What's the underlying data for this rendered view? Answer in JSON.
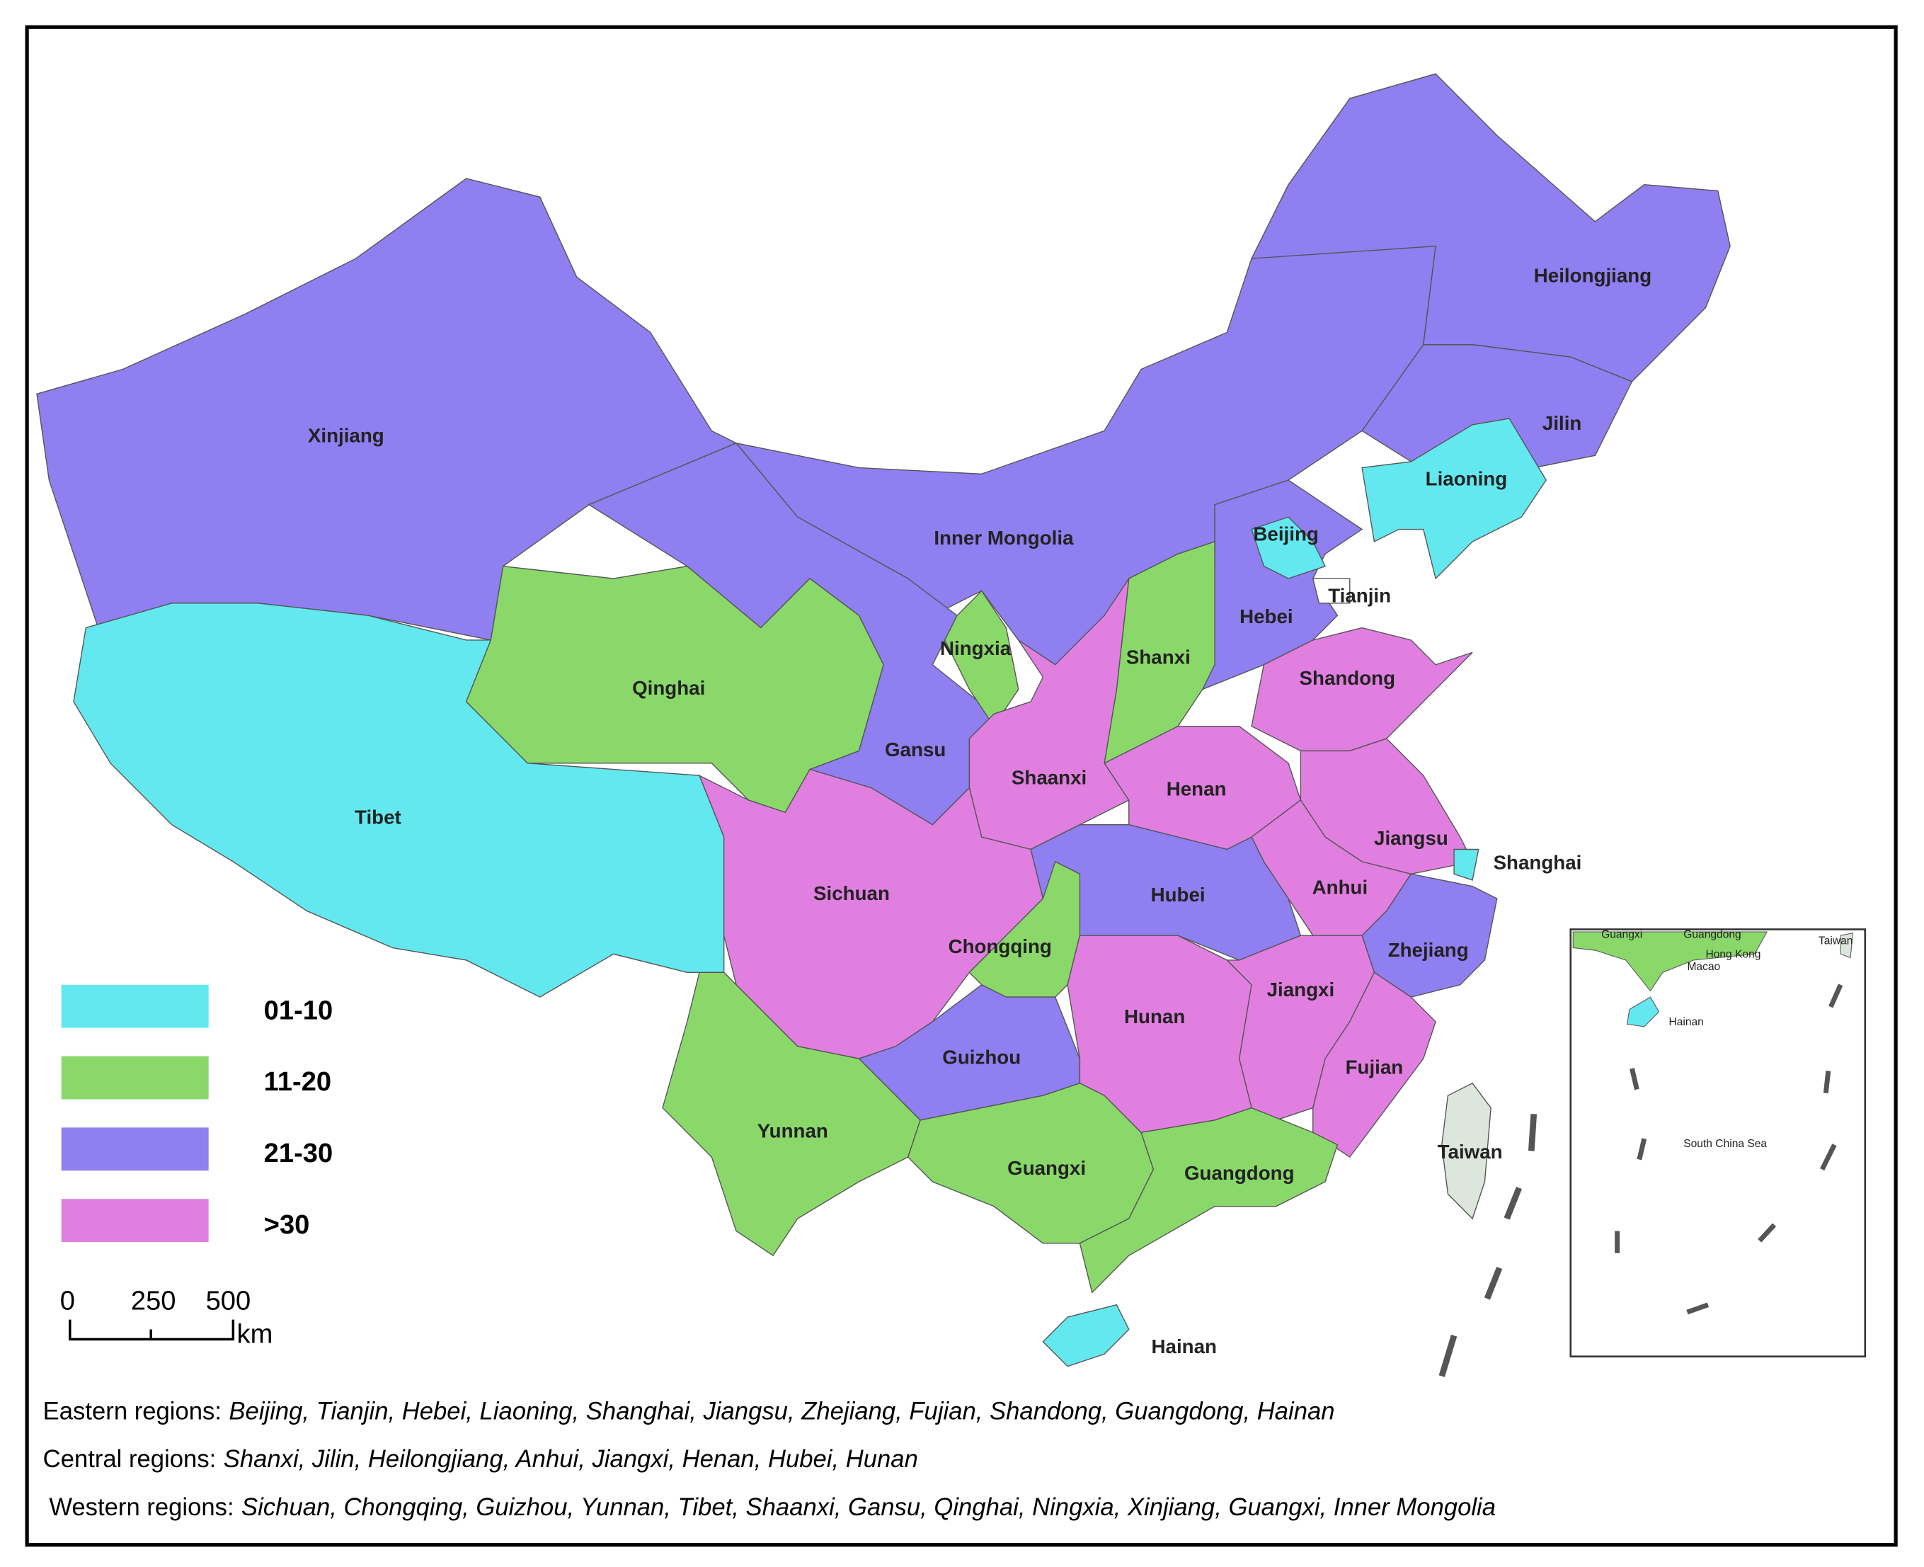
{
  "provinces": [
    {
      "name": "Xinjiang",
      "color": "#8f7ff0"
    },
    {
      "name": "Tibet",
      "color": "#63e8f0"
    },
    {
      "name": "Inner Mongolia",
      "color": "#8f7ff0"
    },
    {
      "name": "Gansu",
      "color": "#8f7ff0"
    },
    {
      "name": "Qinghai",
      "color": "#8ad86a"
    },
    {
      "name": "Heilongjiang",
      "color": "#8f7ff0"
    },
    {
      "name": "Jilin",
      "color": "#8f7ff0"
    },
    {
      "name": "Liaoning",
      "color": "#63e8f0"
    },
    {
      "name": "Hebei",
      "color": "#8f7ff0"
    },
    {
      "name": "Beijing",
      "color": "#63e8f0"
    },
    {
      "name": "Tianjin",
      "color": "#ffffff"
    },
    {
      "name": "Shanxi",
      "color": "#8ad86a"
    },
    {
      "name": "Shandong",
      "color": "#e17fe0"
    },
    {
      "name": "Ningxia",
      "color": "#8ad86a"
    },
    {
      "name": "Shaanxi",
      "color": "#e17fe0"
    },
    {
      "name": "Henan",
      "color": "#e17fe0"
    },
    {
      "name": "Jiangsu",
      "color": "#e17fe0"
    },
    {
      "name": "Shanghai",
      "color": "#63e8f0"
    },
    {
      "name": "Anhui",
      "color": "#e17fe0"
    },
    {
      "name": "Hubei",
      "color": "#8f7ff0"
    },
    {
      "name": "Zhejiang",
      "color": "#8f7ff0"
    },
    {
      "name": "Sichuan",
      "color": "#e17fe0"
    },
    {
      "name": "Chongqing",
      "color": "#8ad86a"
    },
    {
      "name": "Guizhou",
      "color": "#8f7ff0"
    },
    {
      "name": "Hunan",
      "color": "#e17fe0"
    },
    {
      "name": "Jiangxi",
      "color": "#e17fe0"
    },
    {
      "name": "Fujian",
      "color": "#e17fe0"
    },
    {
      "name": "Yunnan",
      "color": "#8ad86a"
    },
    {
      "name": "Guangxi",
      "color": "#8ad86a"
    },
    {
      "name": "Guangdong",
      "color": "#8ad86a"
    },
    {
      "name": "Hainan",
      "color": "#63e8f0"
    },
    {
      "name": "Taiwan",
      "color": "#dde6dc"
    }
  ],
  "legend": {
    "items": [
      {
        "label": "01-10",
        "color": "#63e8f0"
      },
      {
        "label": "11-20",
        "color": "#8ad86a"
      },
      {
        "label": "21-30",
        "color": "#8f7ff0"
      },
      {
        "label": ">30",
        "color": "#e17fe0"
      }
    ]
  },
  "scale_bar": {
    "ticks": [
      "0",
      "250",
      "500"
    ],
    "unit": "km"
  },
  "inset": {
    "labels": [
      "Guangxi",
      "Guangdong",
      "Hong Kong",
      "Macao",
      "Taiwan",
      "Hainan",
      "South China Sea"
    ]
  },
  "region_lines": [
    {
      "label": "Eastern regions:",
      "provinces": "Beijing, Tianjin, Hebei, Liaoning,  Shanghai, Jiangsu, Zhejiang, Fujian, Shandong, Guangdong, Hainan"
    },
    {
      "label": "Central regions:",
      "provinces": "Shanxi, Jilin, Heilongjiang, Anhui, Jiangxi, Henan, Hubei, Hunan"
    },
    {
      "label": "Western regions:",
      "provinces": "Sichuan, Chongqing, Guizhou, Yunnan, Tibet, Shaanxi, Gansu, Qinghai, Ningxia, Xinjiang, Guangxi, Inner Mongolia"
    }
  ]
}
